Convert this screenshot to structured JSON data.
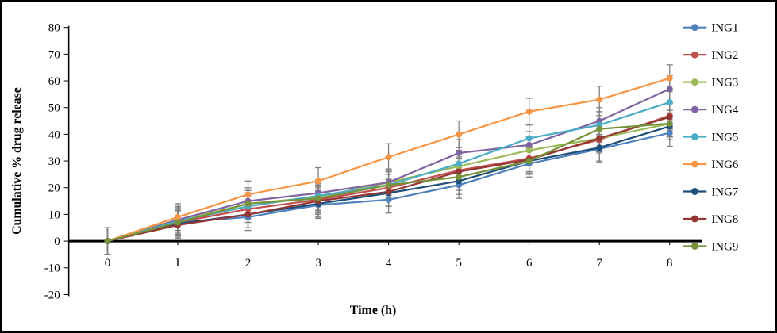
{
  "figure": {
    "background": "#FFFFFF",
    "border_color": "#000000"
  },
  "chart_data": {
    "type": "line",
    "title": "",
    "xlabel": "Time (h)",
    "ylabel": "Cumulative % drug release",
    "x": [
      0,
      1,
      2,
      3,
      4,
      5,
      6,
      7,
      8
    ],
    "x_tick_labels": [
      "0",
      "I",
      "2",
      "3",
      "4",
      "5",
      "6",
      "7",
      "8"
    ],
    "ylim": [
      -20,
      80
    ],
    "ytick_step": 10,
    "grid": false,
    "legend_position": "right",
    "error_bar": 5,
    "error_bar_color": "#7F7F7F",
    "axis_color": "#000000",
    "series": [
      {
        "name": "ING1",
        "color": "#4F81BD",
        "values": [
          0,
          7,
          9,
          13.5,
          15.5,
          21,
          29,
          34.5,
          40.5
        ]
      },
      {
        "name": "ING2",
        "color": "#C0504D",
        "values": [
          0,
          7,
          12,
          15.5,
          20,
          26.5,
          31,
          38,
          47
        ]
      },
      {
        "name": "ING3",
        "color": "#9BBB59",
        "values": [
          0,
          7.5,
          14,
          16.5,
          22,
          28,
          34,
          38.5,
          44
        ]
      },
      {
        "name": "ING4",
        "color": "#8064A2",
        "values": [
          0,
          8,
          15,
          18,
          22,
          33,
          36,
          45,
          57
        ]
      },
      {
        "name": "ING5",
        "color": "#4BACC6",
        "values": [
          0,
          7.5,
          13,
          17,
          21,
          29,
          38.5,
          43.5,
          52
        ]
      },
      {
        "name": "ING6",
        "color": "#F79646",
        "values": [
          0,
          9,
          17.5,
          22.5,
          31.5,
          40,
          48.5,
          53,
          61
        ]
      },
      {
        "name": "ING7",
        "color": "#1F4E79",
        "values": [
          0,
          6.5,
          10,
          14,
          18,
          22.5,
          30,
          35,
          43
        ]
      },
      {
        "name": "ING8",
        "color": "#943634",
        "values": [
          0,
          6,
          10,
          15,
          18.5,
          26,
          30.5,
          38.5,
          46.5
        ]
      },
      {
        "name": "ING9",
        "color": "#76933C",
        "values": [
          0,
          7,
          14,
          16,
          21,
          24,
          30,
          42,
          44
        ]
      }
    ]
  }
}
